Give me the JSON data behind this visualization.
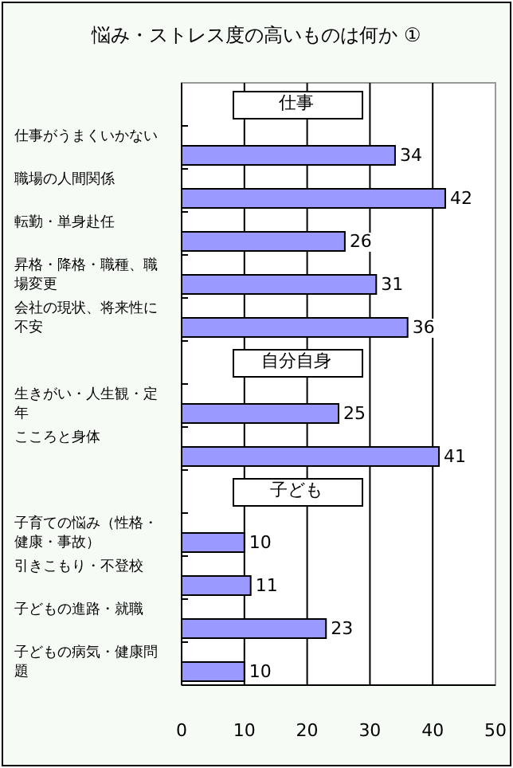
{
  "chart_data": {
    "type": "bar",
    "orientation": "horizontal",
    "title": "悩み・ストレス度の高いものは何か ①",
    "categories": [
      "仕事",
      "仕事がうまくいかない",
      "職場の人間関係",
      "転勤・単身赴任",
      "昇格・降格・職種、職場変更",
      "会社の現状、将来性に不安",
      "自分自身",
      "生きがい・人生観・定年",
      "こころと身体",
      "子ども",
      "子育ての悩み（性格・健康・事故）",
      "引きこもり・不登校",
      "子どもの進路・就職",
      "子どもの病気・健康問題"
    ],
    "values": [
      null,
      34,
      42,
      26,
      31,
      36,
      null,
      25,
      41,
      null,
      10,
      11,
      23,
      10
    ],
    "color": "#9999ff",
    "xlim": [
      0,
      50
    ],
    "xticks": [
      0,
      10,
      20,
      30,
      40,
      50
    ],
    "grid": "x",
    "data_labels": true
  }
}
